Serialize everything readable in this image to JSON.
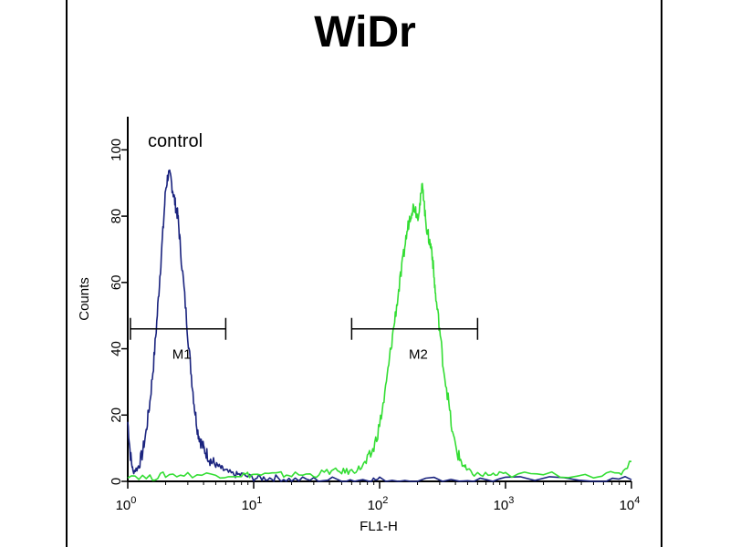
{
  "chart_data": {
    "type": "line",
    "title": "WiDr",
    "xlabel": "FL1-H",
    "ylabel": "Counts",
    "x_scale": "log",
    "xlim": [
      1,
      10000
    ],
    "ylim": [
      0,
      110
    ],
    "x_ticks": [
      {
        "value": 1,
        "base": "10",
        "exp": "0"
      },
      {
        "value": 10,
        "base": "10",
        "exp": "1"
      },
      {
        "value": 100,
        "base": "10",
        "exp": "2"
      },
      {
        "value": 1000,
        "base": "10",
        "exp": "3"
      },
      {
        "value": 10000,
        "base": "10",
        "exp": "4"
      }
    ],
    "y_ticks": [
      {
        "value": 0,
        "label": "0"
      },
      {
        "value": 20,
        "label": "20"
      },
      {
        "value": 40,
        "label": "40"
      },
      {
        "value": 60,
        "label": "60"
      },
      {
        "value": 80,
        "label": "80"
      },
      {
        "value": 100,
        "label": "100"
      }
    ],
    "grid": false,
    "series": [
      {
        "color": "#1a237e",
        "x": [
          1,
          1.05,
          1.1,
          1.2,
          1.3,
          1.4,
          1.5,
          1.6,
          1.7,
          1.8,
          1.9,
          2.0,
          2.1,
          2.2,
          2.3,
          2.4,
          2.5,
          2.6,
          2.8,
          3.0,
          3.2,
          3.4,
          3.6,
          3.8,
          4.0,
          4.3,
          4.6,
          5.0,
          5.5,
          6.0,
          7.0,
          8.0,
          10,
          12,
          15,
          20,
          30,
          50,
          80,
          100,
          200,
          500,
          1000,
          5000,
          10000
        ],
        "y": [
          18,
          8,
          3,
          4,
          8,
          15,
          24,
          35,
          48,
          62,
          75,
          88,
          93,
          91,
          87,
          83,
          80,
          72,
          58,
          44,
          32,
          22,
          15,
          12,
          10,
          8,
          6,
          5,
          4,
          3,
          2,
          2,
          1,
          1,
          1,
          0.5,
          0.5,
          0.5,
          0.5,
          0.5,
          0.5,
          0.5,
          0.5,
          0.5,
          0.5
        ]
      },
      {
        "color": "#33dd33",
        "x": [
          1,
          1.5,
          2,
          3,
          5,
          8,
          10,
          15,
          20,
          30,
          40,
          50,
          60,
          70,
          80,
          90,
          100,
          110,
          120,
          130,
          140,
          150,
          160,
          170,
          180,
          190,
          200,
          210,
          220,
          230,
          240,
          250,
          260,
          270,
          280,
          300,
          320,
          350,
          380,
          420,
          460,
          500,
          600,
          800,
          1000,
          2000,
          5000,
          8000,
          10000
        ],
        "y": [
          2,
          1,
          2,
          2,
          2,
          2,
          2,
          2,
          2,
          2,
          3,
          3,
          3,
          4,
          6,
          10,
          17,
          26,
          37,
          47,
          56,
          64,
          72,
          78,
          82,
          83,
          80,
          84,
          90,
          80,
          75,
          72,
          70,
          62,
          55,
          46,
          35,
          25,
          14,
          8,
          5,
          3,
          2,
          2,
          2,
          2,
          2,
          2,
          6
        ]
      }
    ],
    "annotations": {
      "control_label": "control",
      "markers": [
        {
          "label": "M1",
          "x_start": 1.05,
          "x_end": 6.0,
          "y": 46
        },
        {
          "label": "M2",
          "x_start": 60,
          "x_end": 600,
          "y": 46
        }
      ]
    }
  }
}
